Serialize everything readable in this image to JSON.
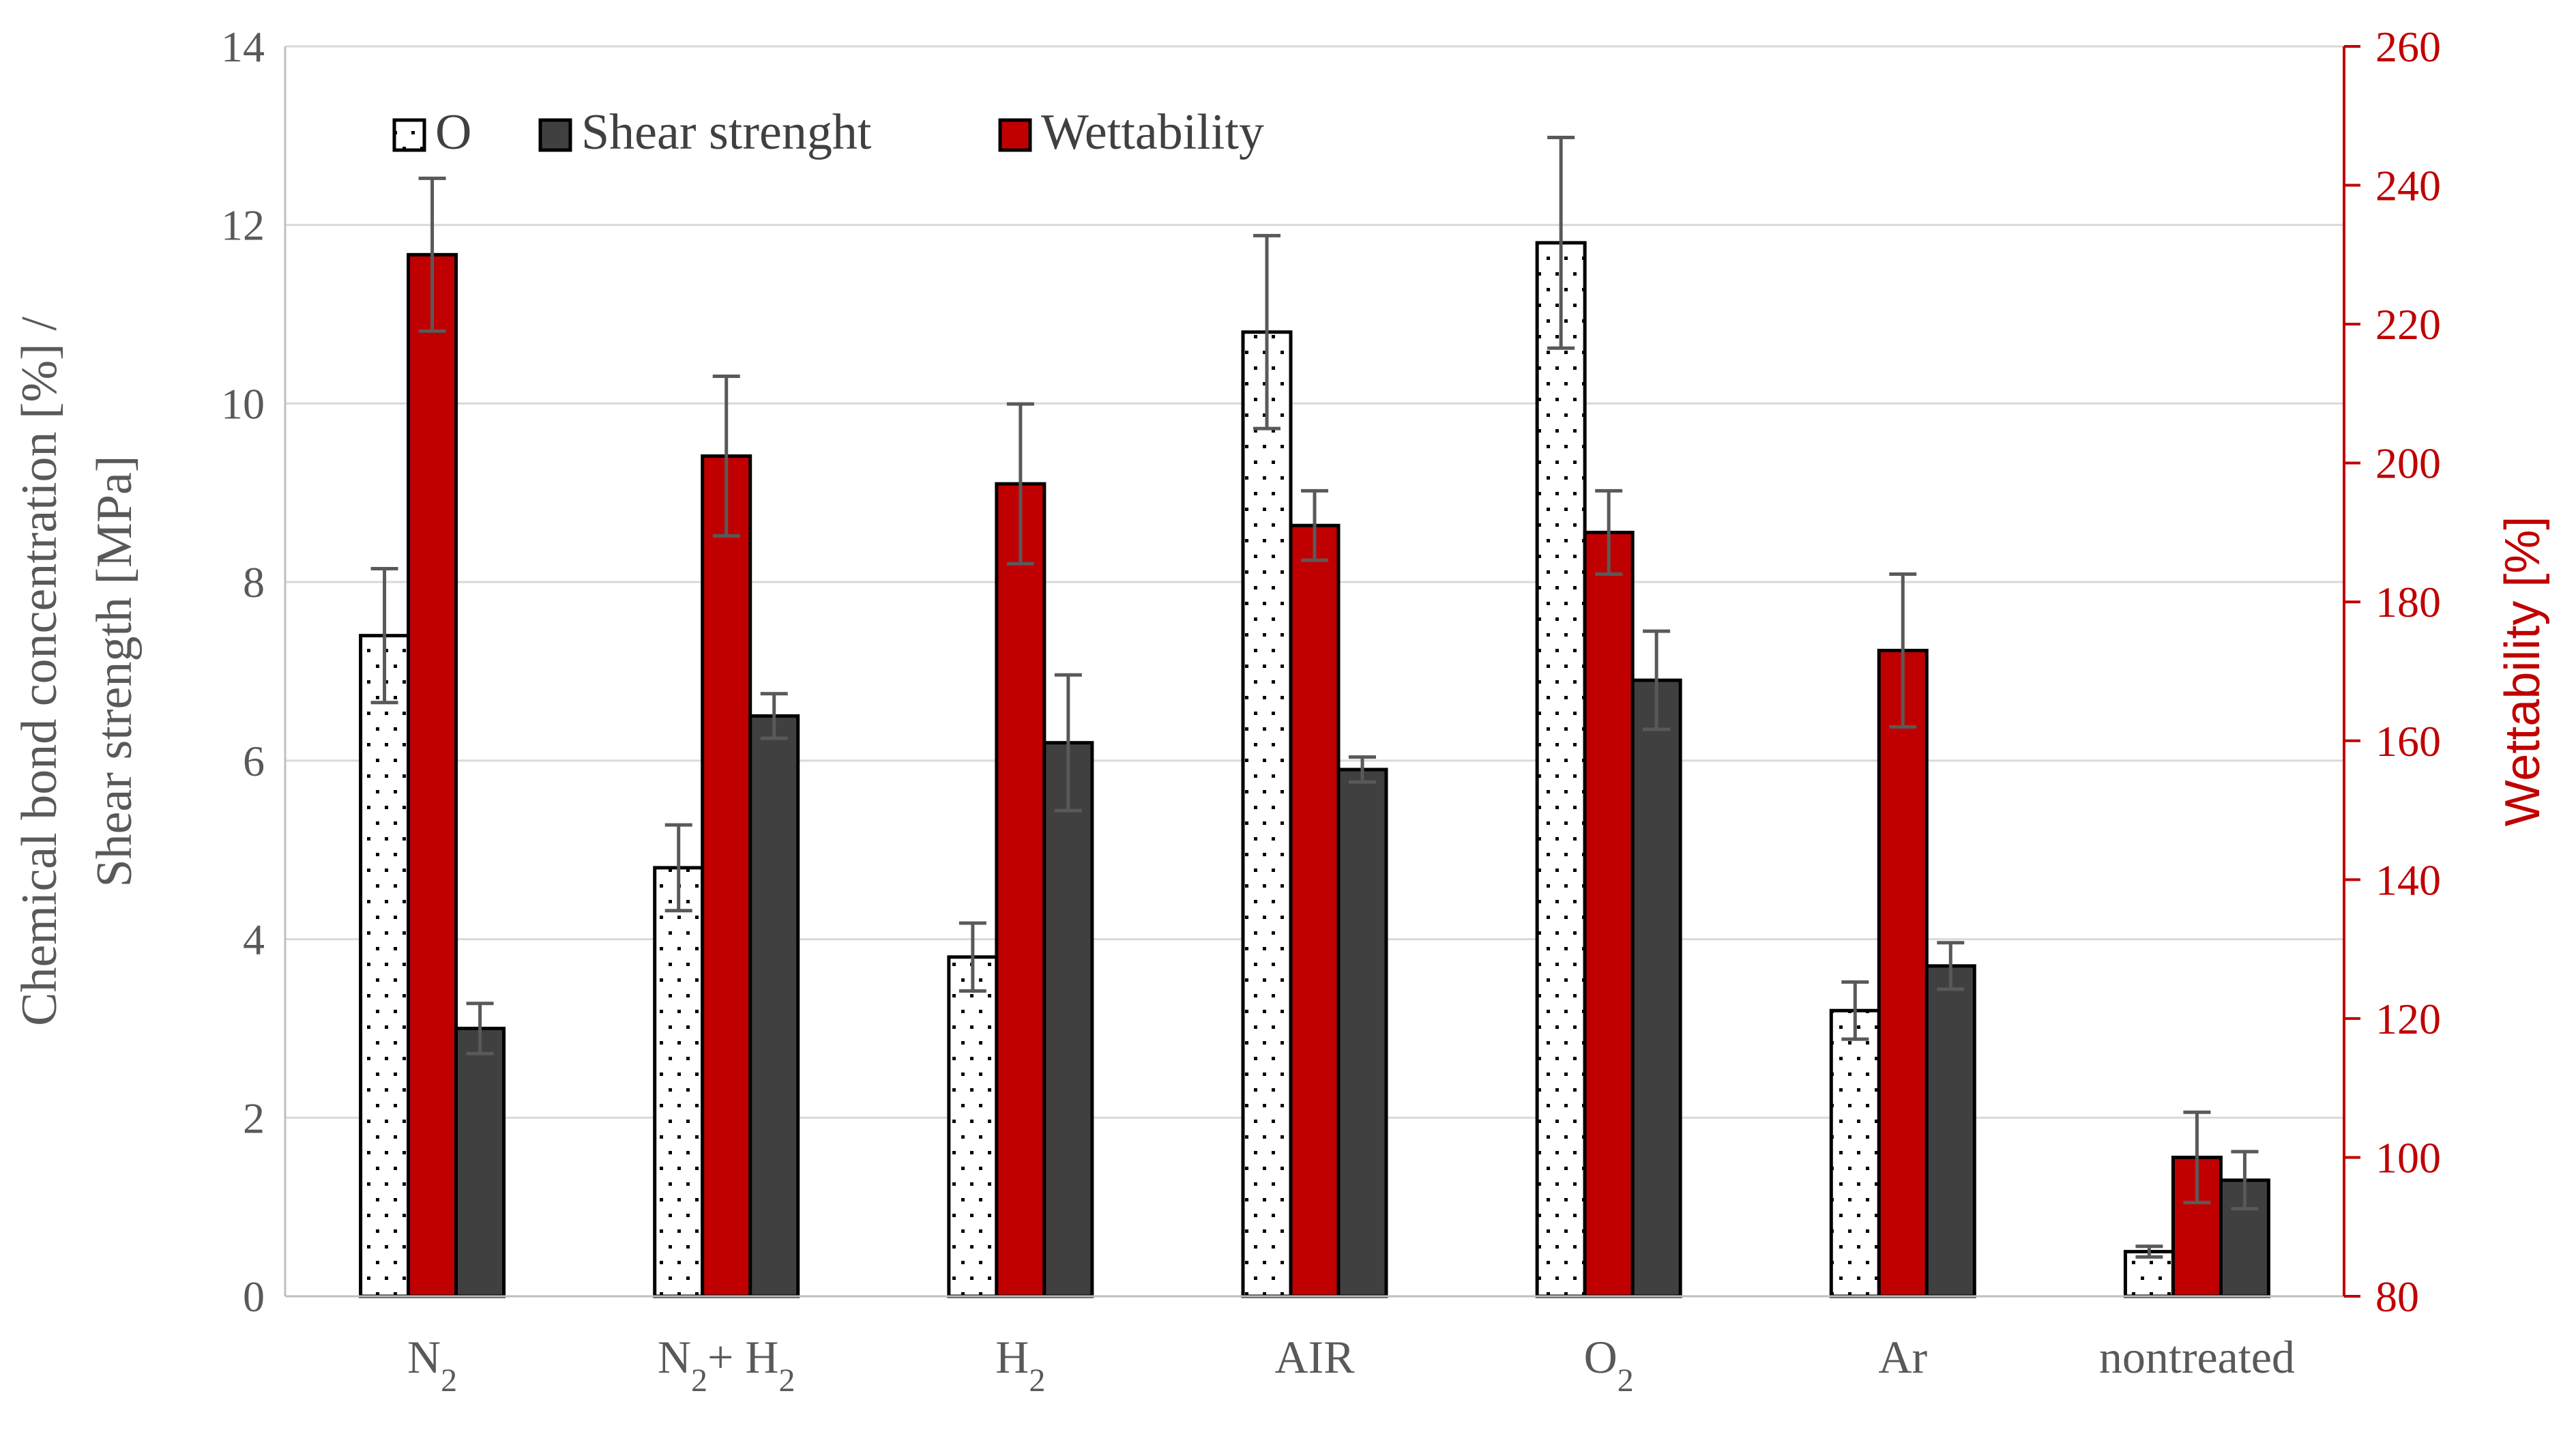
{
  "chart_data": {
    "type": "bar",
    "categories": [
      "N2",
      "N2+H2",
      "H2",
      "AIR",
      "O2",
      "Ar",
      "nontreated"
    ],
    "category_labels": [
      {
        "parts": [
          {
            "t": "N"
          },
          {
            "t": "2",
            "sub": true
          }
        ]
      },
      {
        "parts": [
          {
            "t": "N"
          },
          {
            "t": "2",
            "sub": true
          },
          {
            "t": "+ H"
          },
          {
            "t": "2",
            "sub": true
          }
        ]
      },
      {
        "parts": [
          {
            "t": "H"
          },
          {
            "t": "2",
            "sub": true
          }
        ]
      },
      {
        "parts": [
          {
            "t": "AIR"
          }
        ]
      },
      {
        "parts": [
          {
            "t": "O"
          },
          {
            "t": "2",
            "sub": true
          }
        ]
      },
      {
        "parts": [
          {
            "t": "Ar"
          }
        ]
      },
      {
        "parts": [
          {
            "t": "nontreated"
          }
        ]
      }
    ],
    "series": [
      {
        "name": "O",
        "axis": "left",
        "style": "dotted",
        "fill": "#ffffff",
        "values": [
          7.4,
          4.8,
          3.8,
          10.8,
          11.8,
          3.2,
          0.5
        ],
        "errors": [
          0.75,
          0.48,
          0.38,
          1.08,
          1.18,
          0.32,
          0.06
        ]
      },
      {
        "name": "Wettability",
        "axis": "right",
        "style": "solid",
        "fill": "#c00000",
        "values": [
          230,
          201,
          197,
          191,
          190,
          173,
          100
        ],
        "errors": [
          11,
          11.5,
          11.5,
          5,
          6,
          11,
          6.5
        ]
      },
      {
        "name": "Shear strenght",
        "axis": "left",
        "style": "solid",
        "fill": "#404040",
        "values": [
          3.0,
          6.5,
          6.2,
          5.9,
          6.9,
          3.7,
          1.3
        ],
        "errors": [
          0.28,
          0.25,
          0.76,
          0.14,
          0.55,
          0.26,
          0.32
        ]
      }
    ],
    "legend_order": [
      "O",
      "Shear strenght",
      "Wettability"
    ],
    "ylabel_lines": [
      "Chemical bond concentration [%] /",
      "Shear strength [MPa]"
    ],
    "y2label": "Wettability [%]",
    "ylim": [
      0,
      14
    ],
    "yticks": [
      0,
      2,
      4,
      6,
      8,
      10,
      12,
      14
    ],
    "y2lim": [
      80,
      260
    ],
    "y2ticks": [
      80,
      100,
      120,
      140,
      160,
      180,
      200,
      220,
      240,
      260
    ],
    "grid": true,
    "legend_position": "top-left",
    "colors": {
      "axis_right": "#c00000",
      "text": "#595959",
      "grid": "#d9d9d9",
      "error_bar": "#595959"
    }
  }
}
